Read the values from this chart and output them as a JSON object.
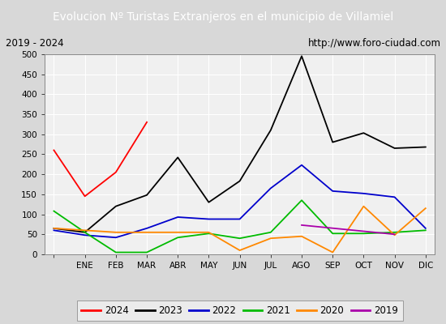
{
  "title": "Evolucion Nº Turistas Extranjeros en el municipio de Villamiel",
  "subtitle_left": "2019 - 2024",
  "subtitle_right": "http://www.foro-ciudad.com",
  "months": [
    "",
    "ENE",
    "FEB",
    "MAR",
    "ABR",
    "MAY",
    "JUN",
    "JUL",
    "AGO",
    "SEP",
    "OCT",
    "NOV",
    "DIC"
  ],
  "series": {
    "2024": {
      "color": "#ff0000",
      "data": [
        260,
        145,
        205,
        330,
        null,
        null,
        null,
        null,
        null,
        null,
        null,
        null,
        null
      ]
    },
    "2023": {
      "color": "#000000",
      "data": [
        65,
        55,
        120,
        148,
        242,
        130,
        183,
        310,
        495,
        280,
        303,
        265,
        268
      ]
    },
    "2022": {
      "color": "#0000cc",
      "data": [
        60,
        48,
        42,
        65,
        93,
        88,
        88,
        165,
        223,
        158,
        152,
        143,
        65
      ]
    },
    "2021": {
      "color": "#00bb00",
      "data": [
        108,
        55,
        5,
        5,
        42,
        52,
        40,
        55,
        135,
        52,
        52,
        55,
        60
      ]
    },
    "2020": {
      "color": "#ff8800",
      "data": [
        65,
        60,
        55,
        55,
        55,
        55,
        10,
        40,
        45,
        5,
        120,
        48,
        115
      ]
    },
    "2019": {
      "color": "#aa00aa",
      "data": [
        null,
        null,
        null,
        null,
        null,
        null,
        null,
        null,
        73,
        null,
        null,
        50,
        null
      ]
    }
  },
  "ylim": [
    0,
    500
  ],
  "yticks": [
    0,
    50,
    100,
    150,
    200,
    250,
    300,
    350,
    400,
    450,
    500
  ],
  "title_bg_color": "#4472c4",
  "title_fg_color": "#ffffff",
  "plot_bg_color": "#f0f0f0",
  "grid_color": "#ffffff",
  "fig_bg_color": "#d8d8d8"
}
